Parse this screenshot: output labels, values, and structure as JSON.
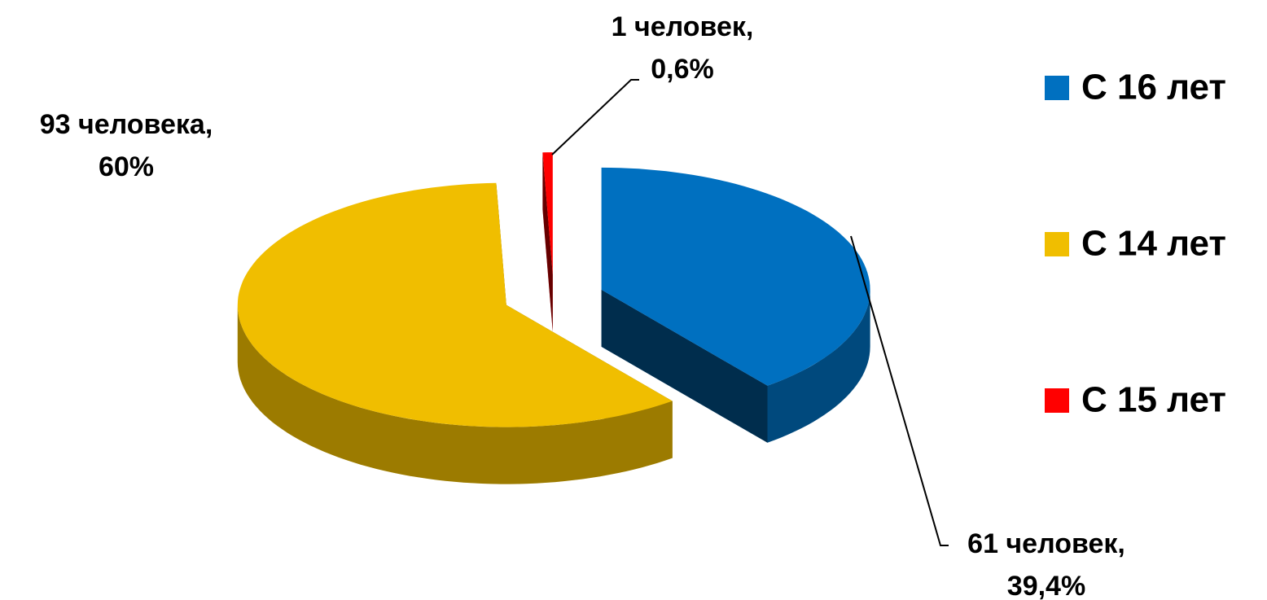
{
  "chart_data": {
    "type": "pie",
    "three_d": true,
    "exploded": true,
    "categories": [
      "С 16 лет",
      "С 14 лет",
      "С 15 лет"
    ],
    "values": [
      39.4,
      60,
      0.6
    ],
    "value_labels": [
      "39,4%",
      "60%",
      "0,6%"
    ],
    "count_labels": [
      "61 человек,",
      "93 человека,",
      "1 человек,"
    ],
    "colors": [
      "#0070c0",
      "#f0be00",
      "#ff0000"
    ],
    "legend": "right"
  }
}
